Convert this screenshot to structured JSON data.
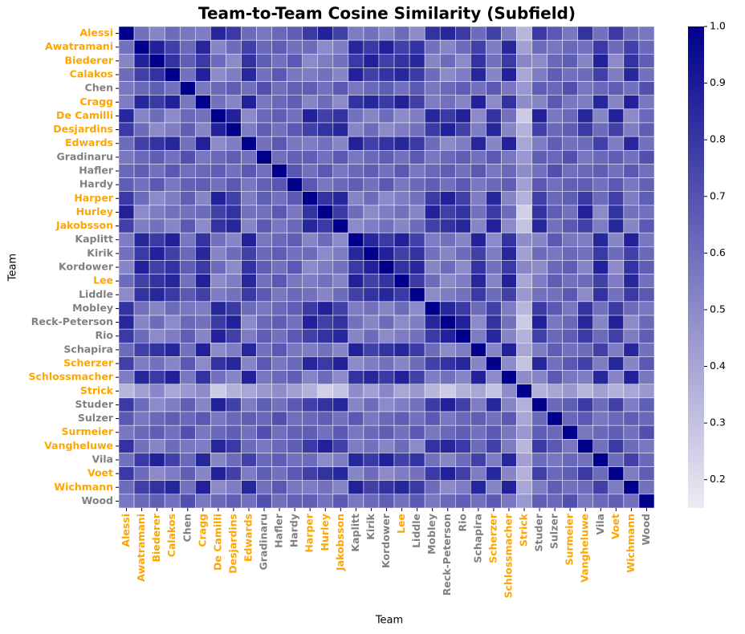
{
  "chart_data": {
    "type": "heatmap",
    "title": "Team-to-Team Cosine Similarity (Subfield)",
    "xlabel": "Team",
    "ylabel": "Team",
    "categories": [
      "Alessi",
      "Awatramani",
      "Biederer",
      "Calakos",
      "Chen",
      "Cragg",
      "De Camilli",
      "Desjardins",
      "Edwards",
      "Gradinaru",
      "Hafler",
      "Hardy",
      "Harper",
      "Hurley",
      "Jakobsson",
      "Kaplitt",
      "Kirik",
      "Kordower",
      "Lee",
      "Liddle",
      "Mobley",
      "Reck-Peterson",
      "Rio",
      "Schapira",
      "Scherzer",
      "Schlossmacher",
      "Strick",
      "Studer",
      "Sulzer",
      "Surmeier",
      "Vangheluwe",
      "Vila",
      "Voet",
      "Wichmann",
      "Wood"
    ],
    "label_colors": [
      "#ffa500",
      "#ffa500",
      "#ffa500",
      "#ffa500",
      "#808080",
      "#ffa500",
      "#ffa500",
      "#ffa500",
      "#ffa500",
      "#808080",
      "#808080",
      "#808080",
      "#ffa500",
      "#ffa500",
      "#ffa500",
      "#808080",
      "#808080",
      "#808080",
      "#ffa500",
      "#808080",
      "#808080",
      "#808080",
      "#808080",
      "#808080",
      "#ffa500",
      "#ffa500",
      "#ffa500",
      "#808080",
      "#808080",
      "#ffa500",
      "#ffa500",
      "#808080",
      "#ffa500",
      "#ffa500",
      "#808080"
    ],
    "colormap": [
      "#eeebf3",
      "#00008b"
    ],
    "clim": [
      0.15,
      1.0
    ],
    "cticks": [
      0.2,
      0.3,
      0.4,
      0.5,
      0.6,
      0.7,
      0.8,
      0.9,
      {
        "value": 1,
        "label": "1.0"
      }
    ],
    "z": [
      [
        1,
        0.59,
        0.52,
        0.61,
        0.57,
        0.55,
        0.86,
        0.79,
        0.61,
        0.57,
        0.62,
        0.66,
        0.79,
        0.88,
        0.77,
        0.55,
        0.59,
        0.52,
        0.61,
        0.5,
        0.82,
        0.86,
        0.79,
        0.61,
        0.77,
        0.55,
        0.34,
        0.79,
        0.68,
        0.57,
        0.82,
        0.59,
        0.79,
        0.61,
        0.57
      ],
      [
        0.59,
        1,
        0.88,
        0.77,
        0.62,
        0.86,
        0.52,
        0.61,
        0.77,
        0.62,
        0.66,
        0.59,
        0.61,
        0.5,
        0.55,
        0.86,
        0.79,
        0.88,
        0.77,
        0.82,
        0.59,
        0.52,
        0.61,
        0.77,
        0.55,
        0.86,
        0.42,
        0.61,
        0.57,
        0.62,
        0.59,
        0.79,
        0.61,
        0.77,
        0.62
      ],
      [
        0.52,
        0.88,
        1,
        0.82,
        0.66,
        0.79,
        0.61,
        0.5,
        0.82,
        0.66,
        0.59,
        0.68,
        0.5,
        0.55,
        0.59,
        0.79,
        0.88,
        0.77,
        0.82,
        0.86,
        0.52,
        0.61,
        0.5,
        0.82,
        0.59,
        0.79,
        0.51,
        0.5,
        0.62,
        0.66,
        0.52,
        0.88,
        0.5,
        0.82,
        0.66
      ],
      [
        0.61,
        0.77,
        0.82,
        1,
        0.59,
        0.88,
        0.5,
        0.55,
        0.86,
        0.59,
        0.68,
        0.57,
        0.55,
        0.59,
        0.52,
        0.88,
        0.77,
        0.82,
        0.86,
        0.79,
        0.61,
        0.5,
        0.55,
        0.86,
        0.52,
        0.88,
        0.4,
        0.55,
        0.66,
        0.59,
        0.61,
        0.77,
        0.55,
        0.86,
        0.59
      ],
      [
        0.57,
        0.62,
        0.66,
        0.59,
        1,
        0.57,
        0.62,
        0.66,
        0.59,
        0.71,
        0.6,
        0.65,
        0.66,
        0.59,
        0.68,
        0.57,
        0.62,
        0.66,
        0.59,
        0.68,
        0.57,
        0.62,
        0.66,
        0.59,
        0.68,
        0.57,
        0.45,
        0.66,
        0.62,
        0.71,
        0.57,
        0.62,
        0.66,
        0.59,
        0.71
      ],
      [
        0.55,
        0.86,
        0.79,
        0.88,
        0.57,
        1,
        0.59,
        0.52,
        0.88,
        0.57,
        0.62,
        0.66,
        0.52,
        0.61,
        0.5,
        0.82,
        0.86,
        0.79,
        0.88,
        0.77,
        0.55,
        0.59,
        0.52,
        0.88,
        0.5,
        0.82,
        0.49,
        0.52,
        0.68,
        0.57,
        0.55,
        0.86,
        0.52,
        0.88,
        0.57
      ],
      [
        0.86,
        0.52,
        0.61,
        0.5,
        0.62,
        0.59,
        1,
        0.88,
        0.5,
        0.62,
        0.66,
        0.59,
        0.88,
        0.77,
        0.82,
        0.59,
        0.52,
        0.61,
        0.5,
        0.55,
        0.86,
        0.79,
        0.88,
        0.5,
        0.82,
        0.59,
        0.27,
        0.88,
        0.57,
        0.62,
        0.86,
        0.52,
        0.88,
        0.5,
        0.62
      ],
      [
        0.79,
        0.61,
        0.5,
        0.55,
        0.66,
        0.52,
        0.88,
        1,
        0.55,
        0.66,
        0.59,
        0.68,
        0.77,
        0.82,
        0.86,
        0.52,
        0.61,
        0.5,
        0.55,
        0.59,
        0.79,
        0.88,
        0.77,
        0.55,
        0.86,
        0.52,
        0.36,
        0.77,
        0.62,
        0.66,
        0.79,
        0.61,
        0.77,
        0.55,
        0.66
      ],
      [
        0.61,
        0.77,
        0.82,
        0.86,
        0.59,
        0.88,
        0.5,
        0.55,
        1,
        0.59,
        0.68,
        0.57,
        0.55,
        0.59,
        0.52,
        0.88,
        0.77,
        0.82,
        0.86,
        0.79,
        0.61,
        0.5,
        0.55,
        0.86,
        0.52,
        0.88,
        0.4,
        0.55,
        0.66,
        0.59,
        0.61,
        0.77,
        0.55,
        0.86,
        0.59
      ],
      [
        0.57,
        0.62,
        0.66,
        0.59,
        0.71,
        0.57,
        0.62,
        0.66,
        0.59,
        1,
        0.6,
        0.65,
        0.66,
        0.59,
        0.68,
        0.57,
        0.62,
        0.66,
        0.59,
        0.68,
        0.57,
        0.62,
        0.66,
        0.59,
        0.68,
        0.57,
        0.45,
        0.66,
        0.62,
        0.71,
        0.57,
        0.62,
        0.66,
        0.59,
        0.71
      ],
      [
        0.62,
        0.66,
        0.59,
        0.68,
        0.6,
        0.62,
        0.66,
        0.59,
        0.68,
        0.6,
        1,
        0.69,
        0.59,
        0.68,
        0.57,
        0.62,
        0.66,
        0.59,
        0.68,
        0.57,
        0.62,
        0.66,
        0.59,
        0.68,
        0.57,
        0.62,
        0.49,
        0.59,
        0.71,
        0.6,
        0.62,
        0.66,
        0.59,
        0.68,
        0.6
      ],
      [
        0.66,
        0.59,
        0.68,
        0.57,
        0.65,
        0.66,
        0.59,
        0.68,
        0.57,
        0.65,
        0.69,
        1,
        0.68,
        0.57,
        0.62,
        0.66,
        0.59,
        0.68,
        0.57,
        0.62,
        0.66,
        0.59,
        0.68,
        0.57,
        0.62,
        0.66,
        0.42,
        0.68,
        0.6,
        0.65,
        0.66,
        0.59,
        0.68,
        0.57,
        0.65
      ],
      [
        0.79,
        0.61,
        0.5,
        0.55,
        0.66,
        0.52,
        0.88,
        0.77,
        0.55,
        0.66,
        0.59,
        0.68,
        1,
        0.82,
        0.86,
        0.52,
        0.61,
        0.5,
        0.55,
        0.59,
        0.79,
        0.88,
        0.77,
        0.55,
        0.86,
        0.52,
        0.36,
        0.77,
        0.62,
        0.66,
        0.79,
        0.61,
        0.77,
        0.55,
        0.66
      ],
      [
        0.88,
        0.5,
        0.55,
        0.59,
        0.59,
        0.61,
        0.77,
        0.82,
        0.59,
        0.59,
        0.68,
        0.57,
        0.82,
        1,
        0.79,
        0.61,
        0.5,
        0.55,
        0.59,
        0.52,
        0.88,
        0.77,
        0.82,
        0.59,
        0.79,
        0.61,
        0.25,
        0.82,
        0.66,
        0.59,
        0.88,
        0.5,
        0.82,
        0.59,
        0.59
      ],
      [
        0.77,
        0.55,
        0.59,
        0.52,
        0.68,
        0.5,
        0.82,
        0.86,
        0.52,
        0.68,
        0.57,
        0.62,
        0.86,
        0.79,
        1,
        0.5,
        0.55,
        0.59,
        0.52,
        0.61,
        0.77,
        0.82,
        0.86,
        0.52,
        0.88,
        0.5,
        0.3,
        0.86,
        0.59,
        0.68,
        0.77,
        0.55,
        0.86,
        0.52,
        0.68
      ],
      [
        0.55,
        0.86,
        0.79,
        0.88,
        0.57,
        0.82,
        0.59,
        0.52,
        0.88,
        0.57,
        0.62,
        0.66,
        0.52,
        0.61,
        0.5,
        1,
        0.86,
        0.79,
        0.88,
        0.77,
        0.55,
        0.59,
        0.52,
        0.88,
        0.5,
        0.82,
        0.49,
        0.52,
        0.68,
        0.57,
        0.55,
        0.86,
        0.52,
        0.88,
        0.57
      ],
      [
        0.59,
        0.79,
        0.88,
        0.77,
        0.62,
        0.86,
        0.52,
        0.61,
        0.77,
        0.62,
        0.66,
        0.59,
        0.61,
        0.5,
        0.55,
        0.86,
        1,
        0.88,
        0.77,
        0.82,
        0.59,
        0.52,
        0.61,
        0.77,
        0.55,
        0.86,
        0.42,
        0.61,
        0.57,
        0.62,
        0.59,
        0.79,
        0.61,
        0.77,
        0.62
      ],
      [
        0.52,
        0.88,
        0.77,
        0.82,
        0.66,
        0.79,
        0.61,
        0.5,
        0.82,
        0.66,
        0.59,
        0.68,
        0.5,
        0.55,
        0.59,
        0.79,
        0.88,
        1,
        0.82,
        0.86,
        0.52,
        0.61,
        0.5,
        0.82,
        0.59,
        0.79,
        0.51,
        0.5,
        0.62,
        0.66,
        0.52,
        0.88,
        0.5,
        0.82,
        0.66
      ],
      [
        0.61,
        0.77,
        0.82,
        0.86,
        0.59,
        0.88,
        0.5,
        0.55,
        0.86,
        0.59,
        0.68,
        0.57,
        0.55,
        0.59,
        0.52,
        0.88,
        0.77,
        0.82,
        1,
        0.79,
        0.61,
        0.5,
        0.55,
        0.86,
        0.52,
        0.88,
        0.4,
        0.55,
        0.66,
        0.59,
        0.61,
        0.77,
        0.55,
        0.86,
        0.59
      ],
      [
        0.5,
        0.82,
        0.86,
        0.79,
        0.68,
        0.77,
        0.55,
        0.59,
        0.79,
        0.68,
        0.57,
        0.62,
        0.59,
        0.52,
        0.61,
        0.77,
        0.82,
        0.86,
        0.79,
        1,
        0.5,
        0.55,
        0.59,
        0.79,
        0.61,
        0.77,
        0.45,
        0.59,
        0.59,
        0.68,
        0.5,
        0.82,
        0.59,
        0.79,
        0.68
      ],
      [
        0.82,
        0.59,
        0.52,
        0.61,
        0.57,
        0.55,
        0.86,
        0.79,
        0.61,
        0.57,
        0.62,
        0.66,
        0.79,
        0.88,
        0.77,
        0.55,
        0.59,
        0.52,
        0.61,
        0.5,
        1,
        0.86,
        0.79,
        0.61,
        0.77,
        0.55,
        0.34,
        0.79,
        0.68,
        0.57,
        0.82,
        0.59,
        0.79,
        0.61,
        0.57
      ],
      [
        0.86,
        0.52,
        0.61,
        0.5,
        0.62,
        0.59,
        0.79,
        0.88,
        0.5,
        0.62,
        0.66,
        0.59,
        0.88,
        0.77,
        0.82,
        0.59,
        0.52,
        0.61,
        0.5,
        0.55,
        0.86,
        1,
        0.88,
        0.5,
        0.82,
        0.59,
        0.27,
        0.88,
        0.57,
        0.62,
        0.86,
        0.52,
        0.88,
        0.5,
        0.62
      ],
      [
        0.79,
        0.61,
        0.5,
        0.55,
        0.66,
        0.52,
        0.88,
        0.77,
        0.55,
        0.66,
        0.59,
        0.68,
        0.77,
        0.82,
        0.86,
        0.52,
        0.61,
        0.5,
        0.55,
        0.59,
        0.79,
        0.88,
        1,
        0.55,
        0.86,
        0.52,
        0.36,
        0.77,
        0.62,
        0.66,
        0.79,
        0.61,
        0.77,
        0.55,
        0.66
      ],
      [
        0.61,
        0.77,
        0.82,
        0.86,
        0.59,
        0.88,
        0.5,
        0.55,
        0.86,
        0.59,
        0.68,
        0.57,
        0.55,
        0.59,
        0.52,
        0.88,
        0.77,
        0.82,
        0.86,
        0.79,
        0.61,
        0.5,
        0.55,
        1,
        0.52,
        0.88,
        0.4,
        0.55,
        0.66,
        0.59,
        0.61,
        0.77,
        0.55,
        0.86,
        0.59
      ],
      [
        0.77,
        0.55,
        0.59,
        0.52,
        0.68,
        0.5,
        0.82,
        0.86,
        0.52,
        0.68,
        0.57,
        0.62,
        0.86,
        0.79,
        0.88,
        0.5,
        0.55,
        0.59,
        0.52,
        0.61,
        0.77,
        0.82,
        0.86,
        0.52,
        1,
        0.5,
        0.3,
        0.86,
        0.59,
        0.68,
        0.77,
        0.55,
        0.86,
        0.52,
        0.68
      ],
      [
        0.55,
        0.86,
        0.79,
        0.88,
        0.57,
        0.82,
        0.59,
        0.52,
        0.88,
        0.57,
        0.62,
        0.66,
        0.52,
        0.61,
        0.5,
        0.82,
        0.86,
        0.79,
        0.88,
        0.77,
        0.55,
        0.59,
        0.52,
        0.88,
        0.5,
        1,
        0.49,
        0.52,
        0.68,
        0.57,
        0.55,
        0.86,
        0.52,
        0.88,
        0.57
      ],
      [
        0.34,
        0.42,
        0.51,
        0.4,
        0.45,
        0.49,
        0.27,
        0.36,
        0.4,
        0.45,
        0.49,
        0.42,
        0.36,
        0.25,
        0.3,
        0.49,
        0.42,
        0.51,
        0.4,
        0.45,
        0.34,
        0.27,
        0.36,
        0.4,
        0.3,
        0.49,
        1,
        0.36,
        0.4,
        0.45,
        0.34,
        0.42,
        0.36,
        0.4,
        0.45
      ],
      [
        0.79,
        0.61,
        0.5,
        0.55,
        0.66,
        0.52,
        0.88,
        0.77,
        0.55,
        0.66,
        0.59,
        0.68,
        0.77,
        0.82,
        0.86,
        0.52,
        0.61,
        0.5,
        0.55,
        0.59,
        0.79,
        0.88,
        0.77,
        0.55,
        0.86,
        0.52,
        0.36,
        1,
        0.62,
        0.66,
        0.79,
        0.61,
        0.77,
        0.55,
        0.66
      ],
      [
        0.68,
        0.57,
        0.62,
        0.66,
        0.62,
        0.68,
        0.57,
        0.62,
        0.66,
        0.62,
        0.71,
        0.6,
        0.62,
        0.66,
        0.59,
        0.68,
        0.57,
        0.62,
        0.66,
        0.59,
        0.68,
        0.57,
        0.62,
        0.66,
        0.59,
        0.68,
        0.4,
        0.62,
        1,
        0.62,
        0.68,
        0.57,
        0.62,
        0.66,
        0.62
      ],
      [
        0.57,
        0.62,
        0.66,
        0.59,
        0.71,
        0.57,
        0.62,
        0.66,
        0.59,
        0.71,
        0.6,
        0.65,
        0.66,
        0.59,
        0.68,
        0.57,
        0.62,
        0.66,
        0.59,
        0.68,
        0.57,
        0.62,
        0.66,
        0.59,
        0.68,
        0.57,
        0.45,
        0.66,
        0.62,
        1,
        0.57,
        0.62,
        0.66,
        0.59,
        0.71
      ],
      [
        0.82,
        0.59,
        0.52,
        0.61,
        0.57,
        0.55,
        0.86,
        0.79,
        0.61,
        0.57,
        0.62,
        0.66,
        0.79,
        0.88,
        0.77,
        0.55,
        0.59,
        0.52,
        0.61,
        0.5,
        0.82,
        0.86,
        0.79,
        0.61,
        0.77,
        0.55,
        0.34,
        0.79,
        0.68,
        0.57,
        1,
        0.59,
        0.79,
        0.61,
        0.57
      ],
      [
        0.59,
        0.79,
        0.88,
        0.77,
        0.62,
        0.86,
        0.52,
        0.61,
        0.77,
        0.62,
        0.66,
        0.59,
        0.61,
        0.5,
        0.55,
        0.86,
        0.79,
        0.88,
        0.77,
        0.82,
        0.59,
        0.52,
        0.61,
        0.77,
        0.55,
        0.86,
        0.42,
        0.61,
        0.57,
        0.62,
        0.59,
        1,
        0.61,
        0.77,
        0.62
      ],
      [
        0.79,
        0.61,
        0.5,
        0.55,
        0.66,
        0.52,
        0.88,
        0.77,
        0.55,
        0.66,
        0.59,
        0.68,
        0.77,
        0.82,
        0.86,
        0.52,
        0.61,
        0.5,
        0.55,
        0.59,
        0.79,
        0.88,
        0.77,
        0.55,
        0.86,
        0.52,
        0.36,
        0.77,
        0.62,
        0.66,
        0.79,
        0.61,
        1,
        0.55,
        0.66
      ],
      [
        0.61,
        0.77,
        0.82,
        0.86,
        0.59,
        0.88,
        0.5,
        0.55,
        0.86,
        0.59,
        0.68,
        0.57,
        0.55,
        0.59,
        0.52,
        0.88,
        0.77,
        0.82,
        0.86,
        0.79,
        0.61,
        0.5,
        0.55,
        0.86,
        0.52,
        0.88,
        0.4,
        0.55,
        0.66,
        0.59,
        0.61,
        0.77,
        0.55,
        1,
        0.59
      ],
      [
        0.57,
        0.62,
        0.66,
        0.59,
        0.71,
        0.57,
        0.62,
        0.66,
        0.59,
        0.71,
        0.6,
        0.65,
        0.66,
        0.59,
        0.68,
        0.57,
        0.62,
        0.66,
        0.59,
        0.68,
        0.57,
        0.62,
        0.66,
        0.59,
        0.68,
        0.57,
        0.45,
        0.66,
        0.62,
        0.71,
        0.57,
        0.62,
        0.66,
        0.59,
        1
      ]
    ]
  }
}
